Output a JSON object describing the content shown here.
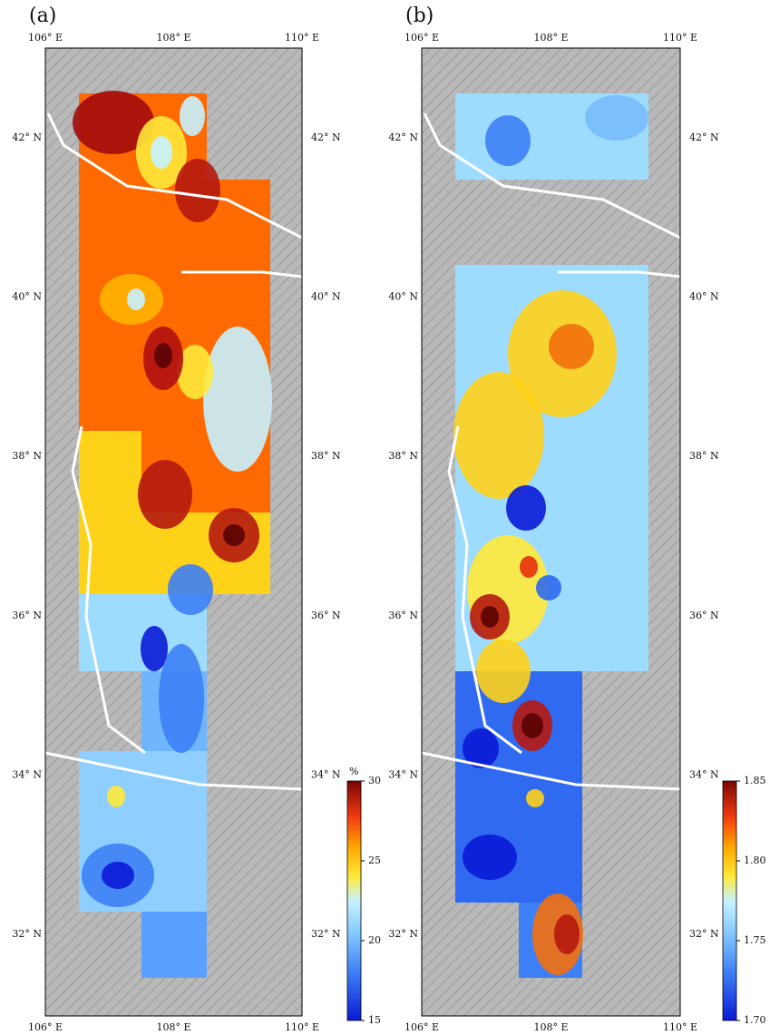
{
  "panels": [
    {
      "label": "(a)",
      "colorbar": {
        "unit": "%",
        "ticks": [
          15,
          20,
          25,
          30
        ]
      }
    },
    {
      "label": "(b)",
      "colorbar": {
        "ticks": [
          {
            "value": 1.7,
            "label": "1.70"
          },
          1.75,
          {
            "value": 1.8,
            "label": "1.80"
          },
          1.85
        ]
      }
    }
  ],
  "lon_labels": [
    "106° E",
    "108° E",
    "110° E"
  ],
  "lat_labels": [
    "42° N",
    "40° N",
    "38° N",
    "36° N",
    "34° N",
    "32° N"
  ]
}
